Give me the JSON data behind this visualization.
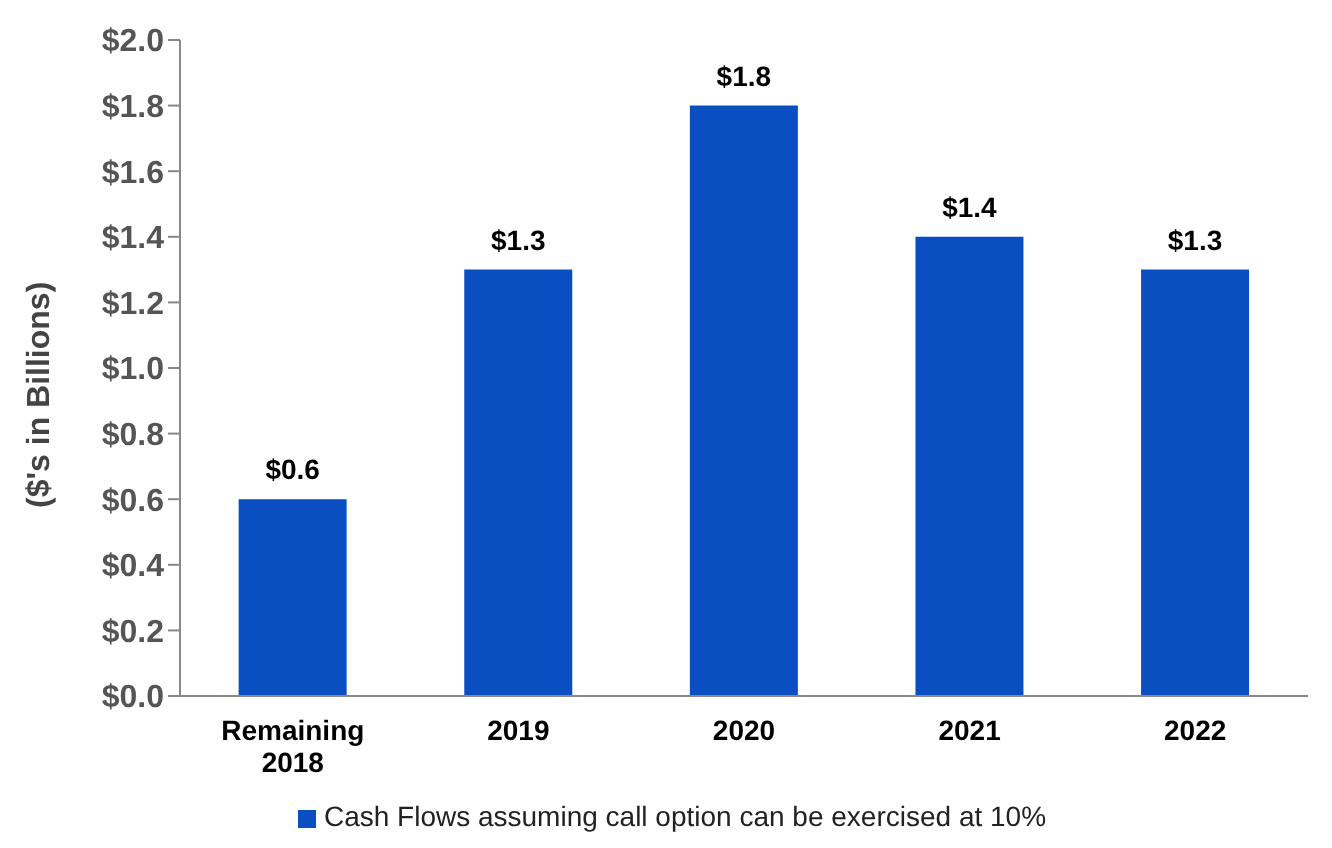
{
  "chart_data": {
    "type": "bar",
    "ylabel": "($'s in Billions)",
    "categories": [
      "Remaining\n2018",
      "2019",
      "2020",
      "2021",
      "2022"
    ],
    "series": [
      {
        "name": "Cash Flows assuming call option can be exercised at 10%",
        "color": "#0a4fc2",
        "values": [
          0.6,
          1.3,
          1.8,
          1.4,
          1.3
        ],
        "value_labels": [
          "$0.6",
          "$1.3",
          "$1.8",
          "$1.4",
          "$1.3"
        ]
      }
    ],
    "ylim": [
      0,
      2.0
    ],
    "yticks": [
      {
        "value": 0,
        "label": "$0.0"
      },
      {
        "value": 0.2,
        "label": "$0.2"
      },
      {
        "value": 0.4,
        "label": "$0.4"
      },
      {
        "value": 0.6,
        "label": "$0.6"
      },
      {
        "value": 0.8,
        "label": "$0.8"
      },
      {
        "value": 1.0,
        "label": "$1.0"
      },
      {
        "value": 1.2,
        "label": "$1.2"
      },
      {
        "value": 1.4,
        "label": "$1.4"
      },
      {
        "value": 1.6,
        "label": "$1.6"
      },
      {
        "value": 1.8,
        "label": "$1.8"
      },
      {
        "value": 2.0,
        "label": "$2.0"
      }
    ],
    "legend": "bottom"
  }
}
